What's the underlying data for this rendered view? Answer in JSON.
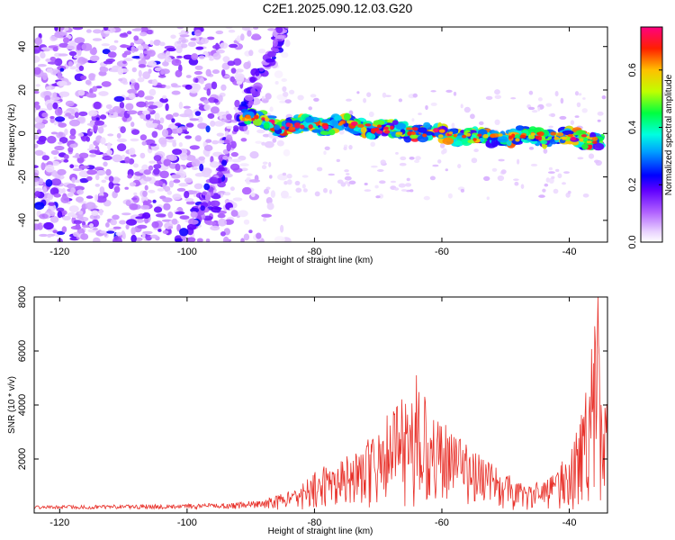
{
  "figure": {
    "title": "C2E1.2025.090.12.03.G20"
  },
  "chart_data": [
    {
      "type": "heatmap",
      "title": "C2E1.2025.090.12.03.G20",
      "xlabel": "Height of straight line (km)",
      "ylabel": "Frequency (Hz)",
      "xlim": [
        -124,
        -34
      ],
      "ylim": [
        -50,
        49
      ],
      "x_ticks": [
        -120,
        -100,
        -80,
        -60,
        -40
      ],
      "y_ticks": [
        -40,
        -20,
        0,
        20,
        40
      ],
      "colorbar": {
        "label": "Normalized spectral amplitude",
        "range": [
          0.0,
          0.75
        ],
        "ticks": [
          0.0,
          0.2,
          0.4,
          0.6
        ],
        "tick_labels": [
          "0.0",
          "0.2",
          "0.4",
          "0.6"
        ],
        "colormap": [
          "#ffffff",
          "#f0e0ff",
          "#c080ff",
          "#8000ff",
          "#0000ff",
          "#00ffff",
          "#00ff00",
          "#ffff00",
          "#ff8000",
          "#ff0000",
          "#ff00a0"
        ]
      },
      "features": [
        {
          "name": "",
          "points": [
            [
              -124,
              40
            ],
            [
              -116,
              -30
            ],
            [
              -108,
              20
            ],
            [
              -104,
              -40
            ],
            [
              -100,
              35
            ],
            [
              -95,
              10
            ],
            [
              -92,
              -20
            ]
          ],
          "amplitude": 0.12
        },
        {
          "name": "",
          "points": [
            [
              -101,
              -50
            ],
            [
              -97,
              -30
            ],
            [
              -94,
              -12
            ],
            [
              -91,
              10
            ],
            [
              -89,
              25
            ],
            [
              -86,
              40
            ],
            [
              -85,
              49
            ]
          ],
          "amplitude": 0.1
        },
        {
          "name": "",
          "points": [
            [
              -91,
              8
            ],
            [
              -85,
              3
            ],
            [
              -80,
              4
            ],
            [
              -75,
              4
            ],
            [
              -70,
              2
            ],
            [
              -65,
              1
            ],
            [
              -60,
              0
            ],
            [
              -55,
              -2
            ],
            [
              -50,
              -2
            ],
            [
              -45,
              -1
            ],
            [
              -40,
              -2
            ],
            [
              -35,
              -3
            ]
          ],
          "amplitude": 0.7
        }
      ]
    },
    {
      "type": "line",
      "xlabel": "Height of straight line (km)",
      "ylabel": "SNR (10 * v/v)",
      "xlim": [
        -124,
        -34
      ],
      "ylim": [
        0,
        8000
      ],
      "x_ticks": [
        -120,
        -100,
        -80,
        -60,
        -40
      ],
      "y_ticks": [
        2000,
        4000,
        6000,
        8000
      ],
      "color": "#e8312a",
      "envelope": {
        "x": [
          -124,
          -110,
          -100,
          -92,
          -88,
          -84,
          -82,
          -80,
          -78,
          -75,
          -72,
          -70,
          -68,
          -66,
          -64,
          -62,
          -60,
          -58,
          -56,
          -54,
          -52,
          -50,
          -48,
          -46,
          -44,
          -42,
          -40,
          -38,
          -37,
          -36,
          -35.5,
          -35,
          -34
        ],
        "y": [
          250,
          280,
          300,
          350,
          500,
          800,
          1100,
          1500,
          1800,
          2300,
          2800,
          3300,
          3800,
          4300,
          4600,
          4200,
          3400,
          3000,
          2500,
          2200,
          1800,
          1500,
          1200,
          1100,
          1200,
          1600,
          2300,
          3800,
          5000,
          8000,
          6500,
          5500,
          4000
        ]
      },
      "peaks": [
        {
          "x": -64,
          "y": 5100
        },
        {
          "x": -35.5,
          "y": 8000
        }
      ]
    }
  ]
}
